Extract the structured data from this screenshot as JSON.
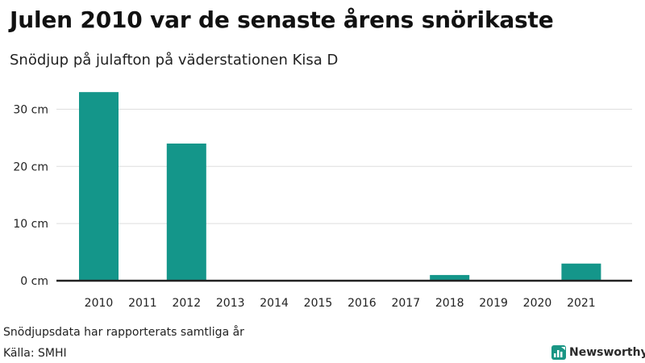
{
  "title": "Julen 2010 var de senaste årens snörikaste",
  "subtitle": "Snödjup på julafton på väderstationen Kisa D",
  "note": "Snödjupsdata har rapporterats samtliga år",
  "source": "Källa: SMHI",
  "brand": {
    "name": "Newsworthy",
    "icon": "bar-chart-logo-icon",
    "color": "#1a9685"
  },
  "colors": {
    "bar": "#14968a",
    "grid": "#dddddd",
    "axis": "#222222"
  },
  "chart_data": {
    "type": "bar",
    "categories": [
      "2010",
      "2011",
      "2012",
      "2013",
      "2014",
      "2015",
      "2016",
      "2017",
      "2018",
      "2019",
      "2020",
      "2021"
    ],
    "values": [
      33,
      0,
      24,
      0,
      0,
      0,
      0,
      0,
      1,
      0,
      0,
      3
    ],
    "unit": "cm",
    "ylim": [
      0,
      35
    ],
    "yticks": [
      0,
      10,
      20,
      30
    ],
    "ytick_labels": [
      "0 cm",
      "10 cm",
      "20 cm",
      "30 cm"
    ],
    "grid": true,
    "legend": false
  }
}
